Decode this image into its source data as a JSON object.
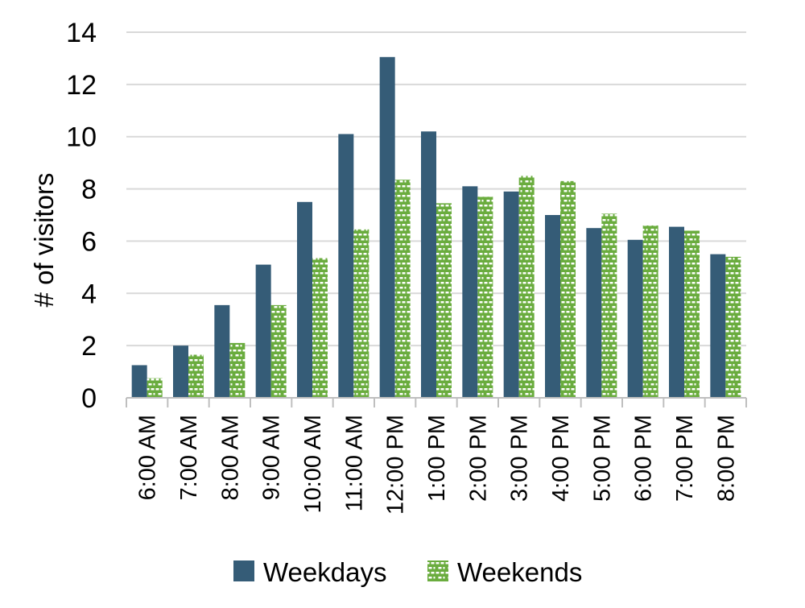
{
  "chart_data": {
    "type": "bar",
    "title": "",
    "xlabel": "",
    "ylabel": "# of visitors",
    "ylim": [
      0,
      14
    ],
    "yticks": [
      0,
      2,
      4,
      6,
      8,
      10,
      12,
      14
    ],
    "grid": true,
    "legend_position": "bottom",
    "categories": [
      "6:00 AM",
      "7:00 AM",
      "8:00 AM",
      "9:00 AM",
      "10:00 AM",
      "11:00 AM",
      "12:00 PM",
      "1:00 PM",
      "2:00 PM",
      "3:00 PM",
      "4:00 PM",
      "5:00 PM",
      "6:00 PM",
      "7:00 PM",
      "8:00 PM"
    ],
    "series": [
      {
        "name": "Weekdays",
        "color": "#355c77",
        "pattern": "solid",
        "values": [
          1.25,
          2.0,
          3.55,
          5.1,
          7.5,
          10.1,
          13.05,
          10.2,
          8.1,
          7.9,
          7.0,
          6.5,
          6.05,
          6.55,
          5.5
        ]
      },
      {
        "name": "Weekends",
        "color": "#6aac3e",
        "pattern": "brick",
        "values": [
          0.75,
          1.65,
          2.1,
          3.55,
          5.35,
          6.45,
          8.35,
          7.45,
          7.7,
          8.5,
          8.3,
          7.05,
          6.6,
          6.4,
          5.4
        ]
      }
    ]
  }
}
